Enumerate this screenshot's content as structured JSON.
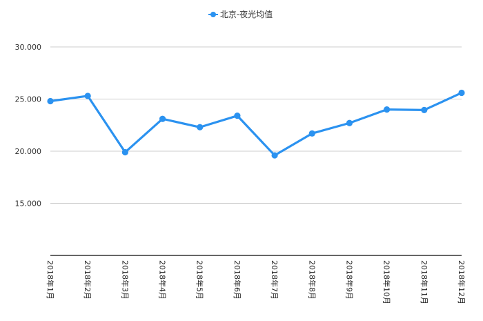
{
  "chart_data": {
    "type": "line",
    "title": "",
    "xlabel": "",
    "ylabel": "",
    "categories": [
      "2018年1月",
      "2018年2月",
      "2018年3月",
      "2018年4月",
      "2018年5月",
      "2018年6月",
      "2018年7月",
      "2018年8月",
      "2018年9月",
      "2018年10月",
      "2018年11月",
      "2018年12月"
    ],
    "series": [
      {
        "name": "北京-夜光均值",
        "values": [
          24.8,
          25.3,
          19.9,
          23.1,
          22.3,
          23.4,
          19.6,
          21.7,
          22.7,
          24.0,
          23.95,
          25.6
        ]
      }
    ],
    "ylim": [
      10,
      30
    ],
    "yticks": [
      "15.000",
      "20.000",
      "25.000",
      "30.000"
    ],
    "ytick_values": [
      15,
      20,
      25,
      30
    ],
    "grid": "horizontal",
    "legend_position": "top",
    "colors": {
      "series": "#2b92f0",
      "grid": "#cccccc",
      "axis": "#333333"
    }
  }
}
